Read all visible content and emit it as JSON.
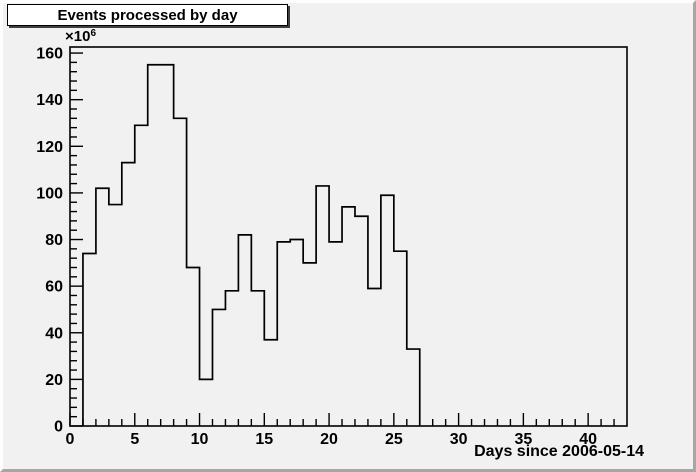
{
  "window": {
    "background": "#f1f1f1",
    "bevel_light": "#fdfdfd",
    "bevel_dark": "#a6a6a6",
    "line_color": "#000000",
    "title_shadow": "#3f3f3f"
  },
  "title_box": {
    "label": "Events processed by day"
  },
  "chart_data": {
    "type": "bar",
    "style": "step-histogram",
    "title": "Events processed by day",
    "xlabel": "Days since 2006-05-14",
    "ylabel": "",
    "y_scale_label": {
      "multiplier": "×10",
      "exponent": "6"
    },
    "bin_width": 1,
    "x_bin_left_edges": [
      1,
      2,
      3,
      4,
      5,
      6,
      7,
      8,
      9,
      10,
      11,
      12,
      13,
      14,
      15,
      16,
      17,
      18,
      19,
      20,
      21,
      22,
      23,
      24,
      25,
      26
    ],
    "values": [
      74,
      102,
      95,
      113,
      129,
      155,
      155,
      132,
      68,
      20,
      50,
      58,
      82,
      58,
      37,
      79,
      80,
      70,
      103,
      79,
      94,
      90,
      59,
      99,
      75,
      33
    ],
    "values_unit": "1e6 events",
    "xlim": [
      0,
      43
    ],
    "ylim": [
      0,
      162.6
    ],
    "x_major_ticks": [
      0,
      5,
      10,
      15,
      20,
      25,
      30,
      35,
      40
    ],
    "y_major_ticks": [
      0,
      20,
      40,
      60,
      80,
      100,
      120,
      140,
      160
    ],
    "x_minor_step": 1,
    "y_minor_step": 4,
    "grid": false,
    "legend": false,
    "line_color": "#000000"
  }
}
